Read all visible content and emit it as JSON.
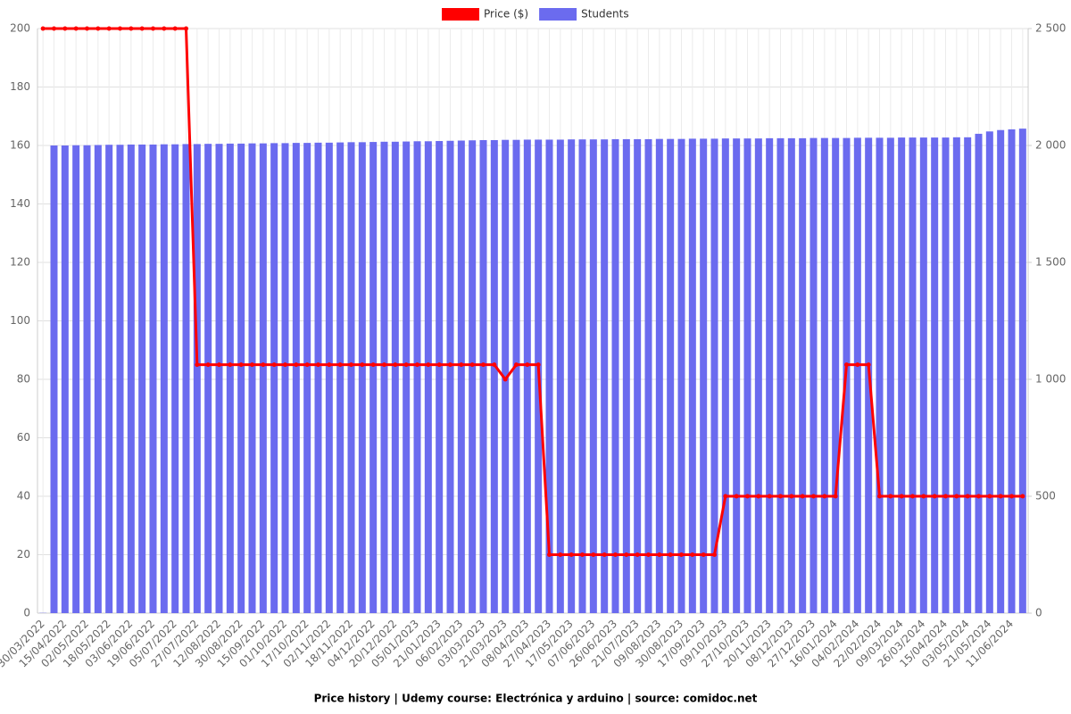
{
  "chart_data": {
    "type": "bar-line",
    "title": "Price history | Udemy course: Electrónica y arduino | source: comidoc.net",
    "categories": [
      "30/03/2022",
      null,
      "15/04/2022",
      null,
      "02/05/2022",
      null,
      "18/05/2022",
      null,
      "03/06/2022",
      null,
      "19/06/2022",
      null,
      "05/07/2022",
      null,
      "27/07/2022",
      null,
      "12/08/2022",
      null,
      "30/08/2022",
      null,
      "15/09/2022",
      null,
      "01/10/2022",
      null,
      "17/10/2022",
      null,
      "02/11/2022",
      null,
      "18/11/2022",
      null,
      "04/12/2022",
      null,
      "20/12/2022",
      null,
      "05/01/2023",
      null,
      "21/01/2023",
      null,
      "06/02/2023",
      null,
      "03/03/2023",
      null,
      "21/03/2023",
      null,
      "08/04/2023",
      null,
      "27/04/2023",
      null,
      "17/05/2023",
      null,
      "07/06/2023",
      null,
      "26/06/2023",
      null,
      "21/07/2023",
      null,
      "09/08/2023",
      null,
      "30/08/2023",
      null,
      "17/09/2023",
      null,
      "09/10/2023",
      null,
      "27/10/2023",
      null,
      "20/11/2023",
      null,
      "08/12/2023",
      null,
      "27/12/2023",
      null,
      "16/01/2024",
      null,
      "04/02/2024",
      null,
      "22/02/2024",
      null,
      "09/03/2024",
      null,
      "26/03/2024",
      null,
      "15/04/2024",
      null,
      "03/05/2024",
      null,
      "21/05/2024",
      null,
      "11/06/2024",
      null
    ],
    "series": [
      {
        "name": "Price ($)",
        "color": "#ff0000",
        "axis": "y",
        "kind": "line",
        "values": [
          200,
          200,
          200,
          200,
          200,
          200,
          200,
          200,
          200,
          200,
          200,
          200,
          200,
          200,
          85,
          85,
          85,
          85,
          85,
          85,
          85,
          85,
          85,
          85,
          85,
          85,
          85,
          85,
          85,
          85,
          85,
          85,
          85,
          85,
          85,
          85,
          85,
          85,
          85,
          85,
          85,
          85,
          80,
          85,
          85,
          85,
          20,
          20,
          20,
          20,
          20,
          20,
          20,
          20,
          20,
          20,
          20,
          20,
          20,
          20,
          20,
          20,
          40,
          40,
          40,
          40,
          40,
          40,
          40,
          40,
          40,
          40,
          40,
          85,
          85,
          85,
          40,
          40,
          40,
          40,
          40,
          40,
          40,
          40,
          40,
          40,
          40,
          40,
          40,
          40
        ]
      },
      {
        "name": "Students",
        "color": "#6b6bef",
        "axis": "y2",
        "kind": "bar",
        "values": [
          1,
          2000,
          2000,
          2001,
          2001,
          2002,
          2003,
          2003,
          2004,
          2004,
          2004,
          2005,
          2005,
          2006,
          2006,
          2007,
          2007,
          2008,
          2008,
          2009,
          2009,
          2010,
          2010,
          2011,
          2011,
          2012,
          2012,
          2013,
          2014,
          2014,
          2015,
          2016,
          2016,
          2017,
          2018,
          2018,
          2019,
          2020,
          2021,
          2022,
          2023,
          2023,
          2024,
          2024,
          2025,
          2025,
          2025,
          2025,
          2026,
          2026,
          2026,
          2026,
          2027,
          2027,
          2027,
          2027,
          2028,
          2028,
          2028,
          2029,
          2029,
          2029,
          2030,
          2030,
          2030,
          2030,
          2031,
          2031,
          2031,
          2031,
          2032,
          2032,
          2032,
          2032,
          2033,
          2033,
          2033,
          2033,
          2034,
          2034,
          2034,
          2034,
          2034,
          2035,
          2035,
          2050,
          2060,
          2066,
          2069,
          2072
        ]
      }
    ],
    "ylim": [
      0,
      200
    ],
    "yticks": [
      0,
      20,
      40,
      60,
      80,
      100,
      120,
      140,
      160,
      180,
      200
    ],
    "y2lim": [
      0,
      2500
    ],
    "y2ticks": [
      0,
      500,
      {
        "value": 1000,
        "label": "1 000"
      },
      {
        "value": 1500,
        "label": "1 500"
      },
      {
        "value": 2000,
        "label": "2 000"
      },
      {
        "value": 2500,
        "label": "2 500"
      }
    ],
    "grid": true,
    "legend": "top"
  }
}
